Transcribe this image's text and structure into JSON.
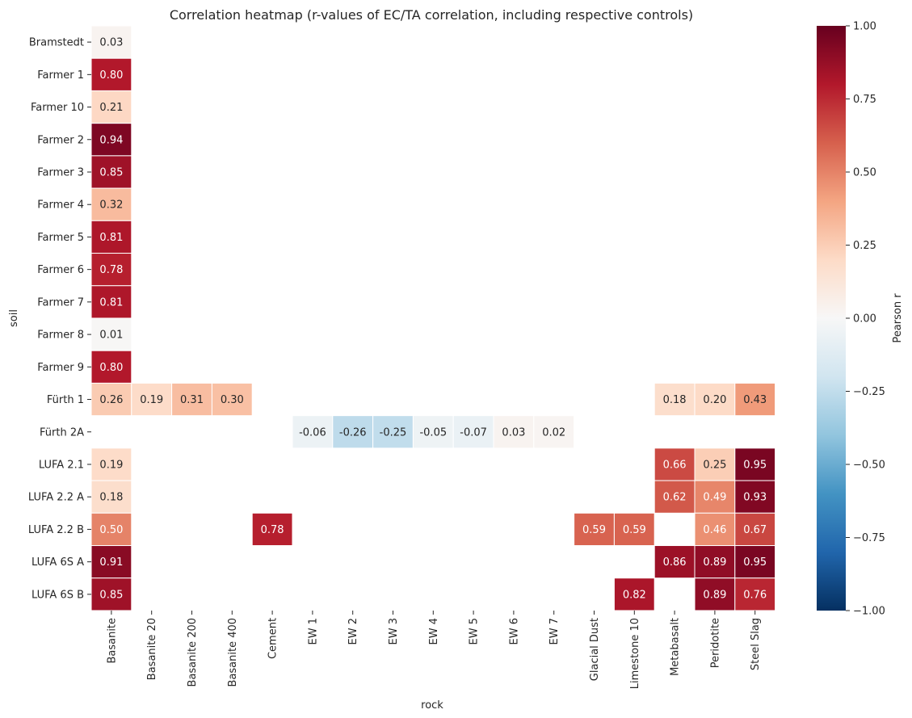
{
  "chart_data": {
    "type": "heatmap",
    "title": "Correlation heatmap (r-values of EC/TA correlation, including respective controls)",
    "xlabel": "rock",
    "ylabel": "soil",
    "x": [
      "Basanite",
      "Basanite 20",
      "Basanite 200",
      "Basanite 400",
      "Cement",
      "EW 1",
      "EW 2",
      "EW 3",
      "EW 4",
      "EW 5",
      "EW 6",
      "EW 7",
      "Glacial Dust",
      "Limestone 10",
      "Metabasalt",
      "Peridotite",
      "Steel Slag"
    ],
    "y": [
      "Bramstedt",
      "Farmer 1",
      "Farmer 10",
      "Farmer 2",
      "Farmer 3",
      "Farmer 4",
      "Farmer 5",
      "Farmer 6",
      "Farmer 7",
      "Farmer 8",
      "Farmer 9",
      "Fürth 1",
      "Fürth 2A",
      "LUFA 2.1",
      "LUFA 2.2 A",
      "LUFA 2.2 B",
      "LUFA 6S A",
      "LUFA 6S B"
    ],
    "values": [
      [
        0.03,
        null,
        null,
        null,
        null,
        null,
        null,
        null,
        null,
        null,
        null,
        null,
        null,
        null,
        null,
        null,
        null
      ],
      [
        0.8,
        null,
        null,
        null,
        null,
        null,
        null,
        null,
        null,
        null,
        null,
        null,
        null,
        null,
        null,
        null,
        null
      ],
      [
        0.21,
        null,
        null,
        null,
        null,
        null,
        null,
        null,
        null,
        null,
        null,
        null,
        null,
        null,
        null,
        null,
        null
      ],
      [
        0.94,
        null,
        null,
        null,
        null,
        null,
        null,
        null,
        null,
        null,
        null,
        null,
        null,
        null,
        null,
        null,
        null
      ],
      [
        0.85,
        null,
        null,
        null,
        null,
        null,
        null,
        null,
        null,
        null,
        null,
        null,
        null,
        null,
        null,
        null,
        null
      ],
      [
        0.32,
        null,
        null,
        null,
        null,
        null,
        null,
        null,
        null,
        null,
        null,
        null,
        null,
        null,
        null,
        null,
        null
      ],
      [
        0.81,
        null,
        null,
        null,
        null,
        null,
        null,
        null,
        null,
        null,
        null,
        null,
        null,
        null,
        null,
        null,
        null
      ],
      [
        0.78,
        null,
        null,
        null,
        null,
        null,
        null,
        null,
        null,
        null,
        null,
        null,
        null,
        null,
        null,
        null,
        null
      ],
      [
        0.81,
        null,
        null,
        null,
        null,
        null,
        null,
        null,
        null,
        null,
        null,
        null,
        null,
        null,
        null,
        null,
        null
      ],
      [
        0.01,
        null,
        null,
        null,
        null,
        null,
        null,
        null,
        null,
        null,
        null,
        null,
        null,
        null,
        null,
        null,
        null
      ],
      [
        0.8,
        null,
        null,
        null,
        null,
        null,
        null,
        null,
        null,
        null,
        null,
        null,
        null,
        null,
        null,
        null,
        null
      ],
      [
        0.26,
        0.19,
        0.31,
        0.3,
        null,
        null,
        null,
        null,
        null,
        null,
        null,
        null,
        null,
        null,
        0.18,
        0.2,
        0.43
      ],
      [
        null,
        null,
        null,
        null,
        null,
        -0.06,
        -0.26,
        -0.25,
        -0.05,
        -0.07,
        0.03,
        0.02,
        null,
        null,
        null,
        null,
        null
      ],
      [
        0.19,
        null,
        null,
        null,
        null,
        null,
        null,
        null,
        null,
        null,
        null,
        null,
        null,
        null,
        0.66,
        0.25,
        0.95
      ],
      [
        0.18,
        null,
        null,
        null,
        null,
        null,
        null,
        null,
        null,
        null,
        null,
        null,
        null,
        null,
        0.62,
        0.49,
        0.93
      ],
      [
        0.5,
        null,
        null,
        null,
        0.78,
        null,
        null,
        null,
        null,
        null,
        null,
        null,
        0.59,
        0.59,
        null,
        0.46,
        0.67
      ],
      [
        0.91,
        null,
        null,
        null,
        null,
        null,
        null,
        null,
        null,
        null,
        null,
        null,
        null,
        null,
        0.86,
        0.89,
        0.95
      ],
      [
        0.85,
        null,
        null,
        null,
        null,
        null,
        null,
        null,
        null,
        null,
        null,
        null,
        null,
        0.82,
        null,
        0.89,
        0.76
      ]
    ],
    "value_format": "0.00",
    "colormap": "RdBu_r",
    "vmin": -1.0,
    "vmax": 1.0,
    "colorbar": {
      "label": "Pearson r",
      "ticks": [
        1.0,
        0.75,
        0.5,
        0.25,
        0.0,
        -0.25,
        -0.5,
        -0.75,
        -1.0
      ],
      "tick_labels": [
        "1.00",
        "0.75",
        "0.50",
        "0.25",
        "0.00",
        "−0.25",
        "−0.50",
        "−0.75",
        "−1.00"
      ],
      "placement": "right"
    },
    "colors": {
      "low": "#053061",
      "mid": "#f7f7f7",
      "high": "#67001f",
      "cell_border": "#ffffff",
      "dark_text": "#262626",
      "light_text": "#ffffff"
    }
  }
}
